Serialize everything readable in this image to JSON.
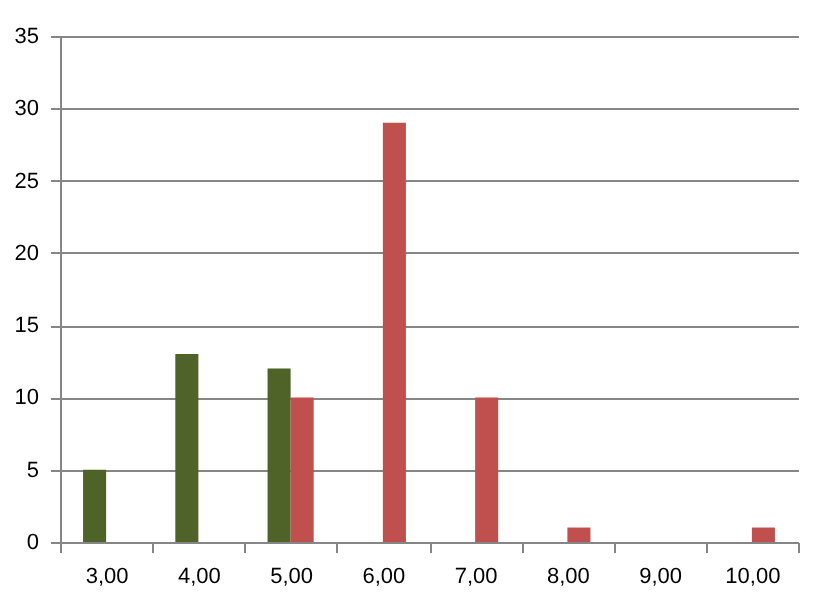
{
  "chart_data": {
    "type": "bar",
    "categories": [
      "3,00",
      "4,00",
      "5,00",
      "6,00",
      "7,00",
      "8,00",
      "9,00",
      "10,00"
    ],
    "series": [
      {
        "color": "#4f6228",
        "values": [
          5,
          13,
          12,
          null,
          null,
          null,
          null,
          null
        ]
      },
      {
        "color": "#c0504d",
        "values": [
          null,
          null,
          10,
          29,
          10,
          1,
          null,
          1
        ]
      }
    ],
    "ylim": [
      0,
      35
    ],
    "yticks": [
      0,
      5,
      10,
      15,
      20,
      25,
      30,
      35
    ],
    "grid": "y"
  }
}
